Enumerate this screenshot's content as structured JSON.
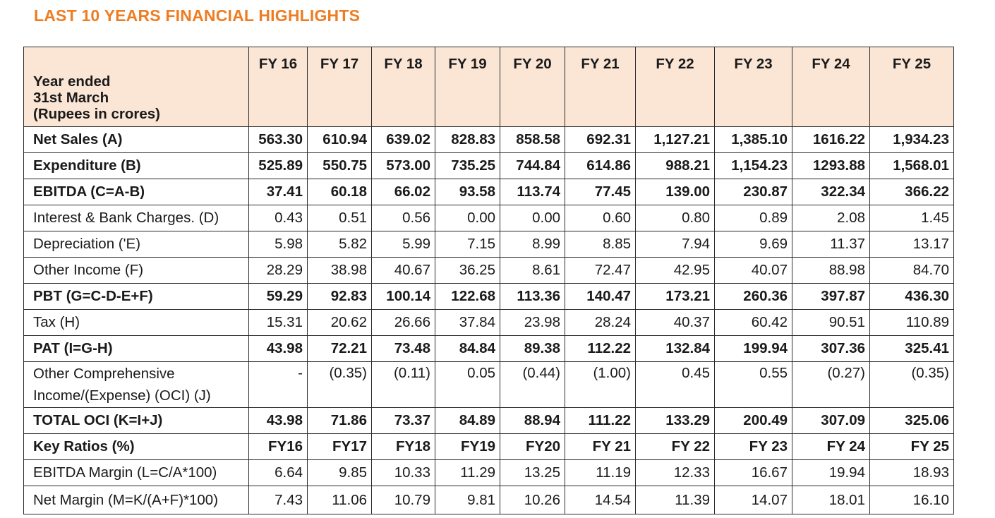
{
  "title": "LAST 10 YEARS FINANCIAL HIGHLIGHTS",
  "header": {
    "label_lines": [
      "Year ended",
      "31st March",
      "(Rupees in crores)"
    ],
    "years": [
      "FY 16",
      "FY 17",
      "FY 18",
      "FY 19",
      "FY 20",
      "FY 21",
      "FY 22",
      "FY 23",
      "FY 24",
      "FY 25"
    ]
  },
  "rows": [
    {
      "label": "Net Sales (A)",
      "bold": true,
      "values": [
        "563.30",
        "610.94",
        "639.02",
        "828.83",
        "858.58",
        "692.31",
        "1,127.21",
        "1,385.10",
        "1616.22",
        "1,934.23"
      ]
    },
    {
      "label": "Expenditure (B)",
      "bold": true,
      "values": [
        "525.89",
        "550.75",
        "573.00",
        "735.25",
        "744.84",
        "614.86",
        "988.21",
        "1,154.23",
        "1293.88",
        "1,568.01"
      ]
    },
    {
      "label": "EBITDA (C=A-B)",
      "bold": true,
      "values": [
        "37.41",
        "60.18",
        "66.02",
        "93.58",
        "113.74",
        "77.45",
        "139.00",
        "230.87",
        "322.34",
        "366.22"
      ]
    },
    {
      "label": "Interest & Bank  Charges. (D)",
      "bold": false,
      "values": [
        "0.43",
        "0.51",
        "0.56",
        "0.00",
        "0.00",
        "0.60",
        "0.80",
        "0.89",
        "2.08",
        "1.45"
      ]
    },
    {
      "label": "Depreciation ('E)",
      "bold": false,
      "values": [
        "5.98",
        "5.82",
        "5.99",
        "7.15",
        "8.99",
        "8.85",
        "7.94",
        "9.69",
        "11.37",
        "13.17"
      ]
    },
    {
      "label": "Other Income (F)",
      "bold": false,
      "values": [
        "28.29",
        "38.98",
        "40.67",
        "36.25",
        "8.61",
        "72.47",
        "42.95",
        "40.07",
        "88.98",
        "84.70"
      ]
    },
    {
      "label": "PBT (G=C-D-E+F)",
      "bold": true,
      "values": [
        "59.29",
        "92.83",
        "100.14",
        "122.68",
        "113.36",
        "140.47",
        "173.21",
        "260.36",
        "397.87",
        "436.30"
      ]
    },
    {
      "label": "Tax (H)",
      "bold": false,
      "values": [
        "15.31",
        "20.62",
        "26.66",
        "37.84",
        "23.98",
        "28.24",
        "40.37",
        "60.42",
        "90.51",
        "110.89"
      ]
    },
    {
      "label": "PAT (I=G-H)",
      "bold": true,
      "values": [
        "43.98",
        "72.21",
        "73.48",
        "84.84",
        "89.38",
        "112.22",
        "132.84",
        "199.94",
        "307.36",
        "325.41"
      ]
    },
    {
      "label": "Other Comprehensive Income/(Expense) (OCI) (J)",
      "bold": false,
      "tall": true,
      "values": [
        "-",
        "(0.35)",
        "(0.11)",
        "0.05",
        "(0.44)",
        "(1.00)",
        "0.45",
        "0.55",
        "(0.27)",
        "(0.35)"
      ]
    },
    {
      "label": "TOTAL OCI (K=I+J)",
      "bold": true,
      "values": [
        "43.98",
        "71.86",
        "73.37",
        "84.89",
        "88.94",
        "111.22",
        "133.29",
        "200.49",
        "307.09",
        "325.06"
      ]
    }
  ],
  "ratios_header": {
    "label": "Key Ratios (%)",
    "years": [
      "FY16",
      "FY17",
      "FY18",
      "FY19",
      "FY20",
      "FY 21",
      "FY 22",
      "FY 23",
      "FY 24",
      "FY 25"
    ]
  },
  "ratio_rows": [
    {
      "label": "EBITDA Margin (L=C/A*100)",
      "values": [
        "6.64",
        "9.85",
        "10.33",
        "11.29",
        "13.25",
        "11.19",
        "12.33",
        "16.67",
        "19.94",
        "18.93"
      ]
    },
    {
      "label": "Net Margin  (M=K/(A+F)*100)",
      "values": [
        "7.43",
        "11.06",
        "10.79",
        "9.81",
        "10.26",
        "14.54",
        "11.39",
        "14.07",
        "18.01",
        "16.10"
      ]
    }
  ]
}
